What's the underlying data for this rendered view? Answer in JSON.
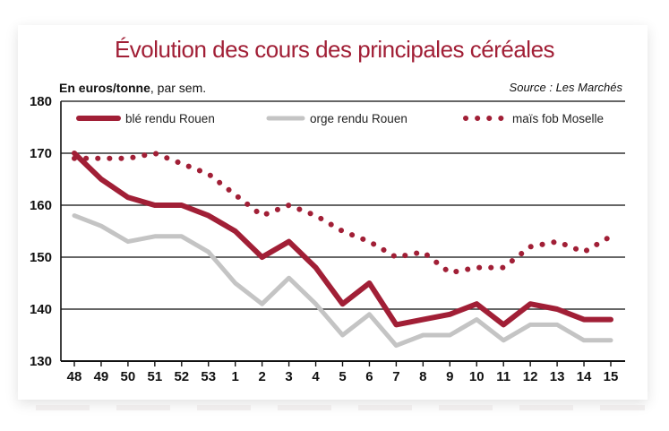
{
  "chart_data": {
    "type": "line",
    "title": "Évolution des cours des principales céréales",
    "unit_label": "En euros/tonne",
    "unit_suffix": ", par sem.",
    "source": "Source : Les Marchés",
    "categories": [
      "48",
      "49",
      "50",
      "51",
      "52",
      "53",
      "1",
      "2",
      "3",
      "4",
      "5",
      "6",
      "7",
      "8",
      "9",
      "10",
      "11",
      "12",
      "13",
      "14",
      "15"
    ],
    "ylim": [
      130,
      180
    ],
    "yticks": [
      130,
      140,
      150,
      160,
      170,
      180
    ],
    "grid": true,
    "legend_position": "top",
    "series": [
      {
        "name": "blé rendu Rouen",
        "color": "#a11f36",
        "style": "solid-thick",
        "values": [
          170,
          165,
          161.5,
          160,
          160,
          158,
          155,
          150,
          153,
          148,
          141,
          145,
          137,
          138,
          139,
          141,
          137,
          141,
          140,
          138,
          138
        ]
      },
      {
        "name": "orge rendu Rouen",
        "color": "#c4c4c4",
        "style": "solid",
        "values": [
          158,
          156,
          153,
          154,
          154,
          151,
          145,
          141,
          146,
          141,
          135,
          139,
          133,
          135,
          135,
          138,
          134,
          137,
          137,
          134,
          134
        ]
      },
      {
        "name": "maïs fob Moselle",
        "color": "#a11f36",
        "style": "dotted",
        "values": [
          169,
          169,
          169,
          170,
          168,
          166,
          162,
          158,
          160,
          158,
          155,
          153,
          150,
          151,
          147,
          148,
          148,
          152,
          153,
          151,
          154
        ]
      }
    ]
  }
}
